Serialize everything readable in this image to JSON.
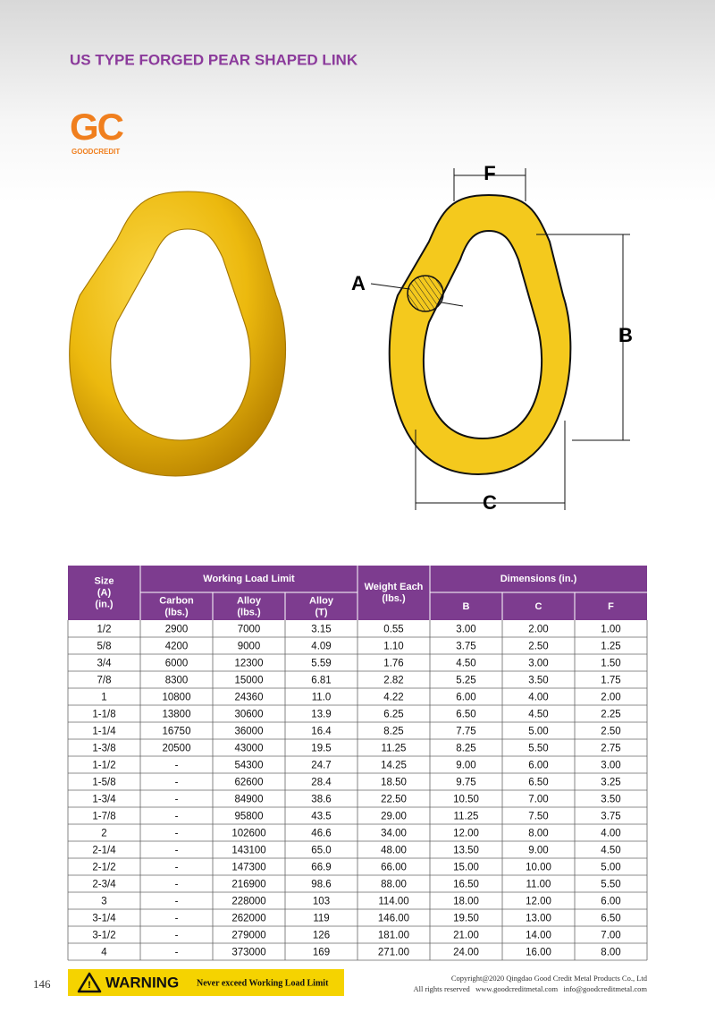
{
  "header": {
    "title": "US TYPE FORGED PEAR SHAPED LINK"
  },
  "logo": {
    "mark": "GC",
    "name": "GOODCREDIT"
  },
  "diagram": {
    "labels": {
      "F": "F",
      "A": "A",
      "B": "B",
      "C": "C"
    }
  },
  "table": {
    "header": {
      "size": [
        "Size",
        "(A)",
        "(in.)"
      ],
      "wll": "Working Load Limit",
      "carbon": [
        "Carbon",
        "(lbs.)"
      ],
      "alloy_lbs": [
        "Alloy",
        "(lbs.)"
      ],
      "alloy_t": [
        "Alloy",
        "(T)"
      ],
      "weight": [
        "Weight Each",
        "(lbs.)"
      ],
      "dimensions": "Dimensions (in.)",
      "b": "B",
      "c": "C",
      "f": "F"
    },
    "rows": [
      [
        "1/2",
        "2900",
        "7000",
        "3.15",
        "0.55",
        "3.00",
        "2.00",
        "1.00"
      ],
      [
        "5/8",
        "4200",
        "9000",
        "4.09",
        "1.10",
        "3.75",
        "2.50",
        "1.25"
      ],
      [
        "3/4",
        "6000",
        "12300",
        "5.59",
        "1.76",
        "4.50",
        "3.00",
        "1.50"
      ],
      [
        "7/8",
        "8300",
        "15000",
        "6.81",
        "2.82",
        "5.25",
        "3.50",
        "1.75"
      ],
      [
        "1",
        "10800",
        "24360",
        "11.0",
        "4.22",
        "6.00",
        "4.00",
        "2.00"
      ],
      [
        "1-1/8",
        "13800",
        "30600",
        "13.9",
        "6.25",
        "6.50",
        "4.50",
        "2.25"
      ],
      [
        "1-1/4",
        "16750",
        "36000",
        "16.4",
        "8.25",
        "7.75",
        "5.00",
        "2.50"
      ],
      [
        "1-3/8",
        "20500",
        "43000",
        "19.5",
        "11.25",
        "8.25",
        "5.50",
        "2.75"
      ],
      [
        "1-1/2",
        "-",
        "54300",
        "24.7",
        "14.25",
        "9.00",
        "6.00",
        "3.00"
      ],
      [
        "1-5/8",
        "-",
        "62600",
        "28.4",
        "18.50",
        "9.75",
        "6.50",
        "3.25"
      ],
      [
        "1-3/4",
        "-",
        "84900",
        "38.6",
        "22.50",
        "10.50",
        "7.00",
        "3.50"
      ],
      [
        "1-7/8",
        "-",
        "95800",
        "43.5",
        "29.00",
        "11.25",
        "7.50",
        "3.75"
      ],
      [
        "2",
        "-",
        "102600",
        "46.6",
        "34.00",
        "12.00",
        "8.00",
        "4.00"
      ],
      [
        "2-1/4",
        "-",
        "143100",
        "65.0",
        "48.00",
        "13.50",
        "9.00",
        "4.50"
      ],
      [
        "2-1/2",
        "-",
        "147300",
        "66.9",
        "66.00",
        "15.00",
        "10.00",
        "5.00"
      ],
      [
        "2-3/4",
        "-",
        "216900",
        "98.6",
        "88.00",
        "16.50",
        "11.00",
        "5.50"
      ],
      [
        "3",
        "-",
        "228000",
        "103",
        "114.00",
        "18.00",
        "12.00",
        "6.00"
      ],
      [
        "3-1/4",
        "-",
        "262000",
        "119",
        "146.00",
        "19.50",
        "13.00",
        "6.50"
      ],
      [
        "3-1/2",
        "-",
        "279000",
        "126",
        "181.00",
        "21.00",
        "14.00",
        "7.00"
      ],
      [
        "4",
        "-",
        "373000",
        "169",
        "271.00",
        "24.00",
        "16.00",
        "8.00"
      ]
    ]
  },
  "footer": {
    "page": "146",
    "warning": "WARNING",
    "warning_text": "Never exceed Working Load Limit",
    "copyright": "Copyright@2020 Qingdao Good Credit Metal Products Co., Ltd",
    "contact": "All rights reserved   www.goodcreditmetal.com   info@goodcreditmetal.com"
  }
}
